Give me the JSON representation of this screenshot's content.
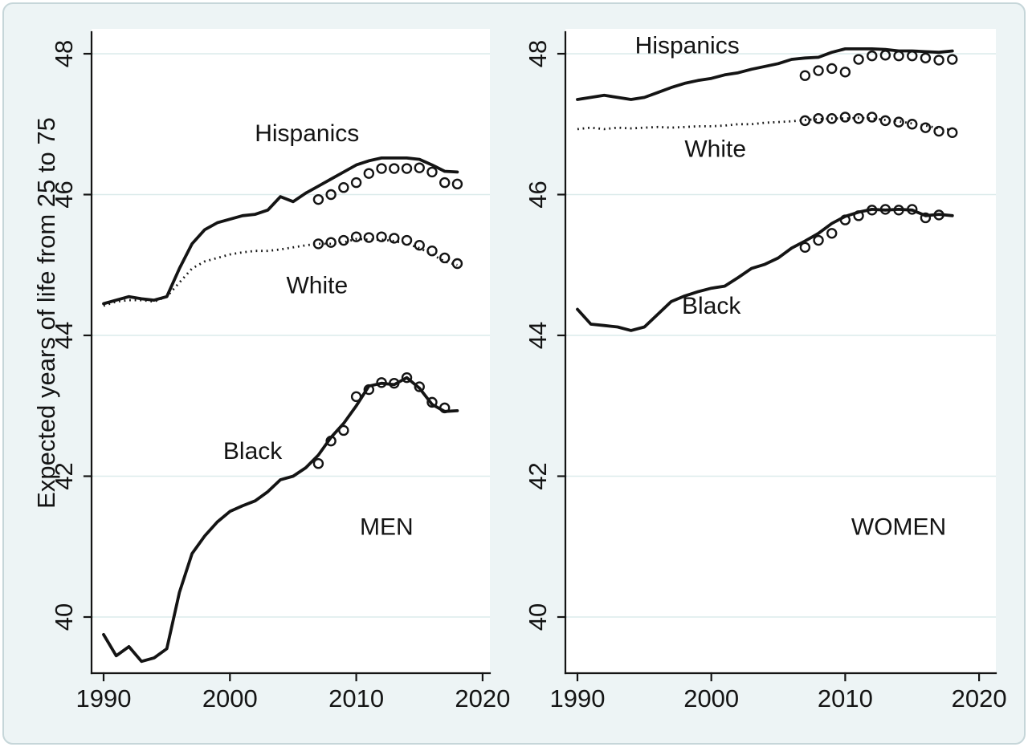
{
  "figure": {
    "description": "Two-panel line chart of expected years of life from 25 to 75 by race-ethnicity, men and women, 1990-2018"
  },
  "colors": {
    "ink": "#141414",
    "grid": "#dcebeb",
    "canvas_bg": "#edf4f5",
    "plot_bg": "#ffffff",
    "frame_border": "#c6d6d9"
  },
  "y_axis": {
    "title": "Expected years of life from 25 to 75",
    "ticks": [
      40,
      42,
      44,
      46,
      48
    ],
    "range": [
      39.2,
      48.31
    ]
  },
  "x_axis": {
    "ticks": [
      1990,
      2000,
      2010,
      2020
    ],
    "range": [
      1989,
      2021.3
    ]
  },
  "chart_data": [
    {
      "type": "line",
      "panel": "left",
      "title": "MEN",
      "title_pos": {
        "year": 2012.4,
        "value": 41.28
      },
      "series": [
        {
          "id": "hispanic-line",
          "group": "Hispanics",
          "style": "solid",
          "start_year": 1990,
          "values": [
            44.45,
            44.5,
            44.55,
            44.52,
            44.5,
            44.55,
            44.95,
            45.3,
            45.5,
            45.6,
            45.65,
            45.7,
            45.72,
            45.78,
            45.97,
            45.9,
            46.02,
            46.12,
            46.22,
            46.32,
            46.42,
            46.48,
            46.52,
            46.52,
            46.52,
            46.5,
            46.42,
            46.33,
            46.32
          ]
        },
        {
          "id": "white-line",
          "group": "White",
          "style": "dotted",
          "start_year": 1990,
          "values": [
            44.42,
            44.48,
            44.5,
            44.5,
            44.48,
            44.55,
            44.75,
            44.95,
            45.05,
            45.1,
            45.15,
            45.18,
            45.2,
            45.2,
            45.22,
            45.25,
            45.28,
            45.3,
            45.3,
            45.32,
            45.37,
            45.36,
            45.36,
            45.34,
            45.3,
            45.24,
            45.15,
            45.05,
            45.0
          ]
        },
        {
          "id": "black-line",
          "group": "Black",
          "style": "solid",
          "start_year": 1990,
          "values": [
            39.75,
            39.45,
            39.58,
            39.37,
            39.42,
            39.55,
            40.35,
            40.9,
            41.15,
            41.35,
            41.5,
            41.58,
            41.65,
            41.78,
            41.95,
            42.0,
            42.12,
            42.3,
            42.55,
            42.75,
            43.0,
            43.28,
            43.32,
            43.3,
            43.4,
            43.25,
            43.02,
            42.92,
            42.93
          ]
        },
        {
          "id": "hispanic-markers",
          "group": "Hispanics",
          "style": "hollow-circles",
          "start_year": 2007,
          "values": [
            45.93,
            46.0,
            46.1,
            46.17,
            46.3,
            46.37,
            46.37,
            46.37,
            46.38,
            46.32,
            46.17,
            46.15
          ]
        },
        {
          "id": "white-markers",
          "group": "White",
          "style": "hollow-circles",
          "start_year": 2007,
          "values": [
            45.3,
            45.32,
            45.35,
            45.4,
            45.39,
            45.4,
            45.38,
            45.35,
            45.28,
            45.2,
            45.1,
            45.02
          ]
        },
        {
          "id": "black-markers",
          "group": "Black",
          "style": "hollow-circles",
          "start_year": 2007,
          "values": [
            42.18,
            42.5,
            42.65,
            43.13,
            43.23,
            43.33,
            43.32,
            43.4,
            43.27,
            43.05,
            42.97
          ]
        }
      ],
      "labels": [
        {
          "text": "Hispanics",
          "year": 2006.1,
          "value": 46.87
        },
        {
          "text": "White",
          "year": 2006.9,
          "value": 44.71
        },
        {
          "text": "Black",
          "year": 2001.8,
          "value": 42.36
        }
      ]
    },
    {
      "type": "line",
      "panel": "right",
      "title": "WOMEN",
      "title_pos": {
        "year": 2014.0,
        "value": 41.28
      },
      "series": [
        {
          "id": "hispanic-line",
          "group": "Hispanics",
          "style": "solid",
          "start_year": 1990,
          "values": [
            47.35,
            47.38,
            47.41,
            47.38,
            47.35,
            47.38,
            47.45,
            47.52,
            47.58,
            47.62,
            47.65,
            47.7,
            47.73,
            47.78,
            47.82,
            47.86,
            47.92,
            47.94,
            47.95,
            48.02,
            48.07,
            48.07,
            48.07,
            48.06,
            48.04,
            48.04,
            48.03,
            48.02,
            48.04
          ]
        },
        {
          "id": "white-line",
          "group": "White",
          "style": "dotted",
          "start_year": 1990,
          "values": [
            46.93,
            46.95,
            46.93,
            46.95,
            46.94,
            46.95,
            46.96,
            46.95,
            46.96,
            46.97,
            46.97,
            46.98,
            47.0,
            47.0,
            47.02,
            47.03,
            47.04,
            47.06,
            47.07,
            47.08,
            47.08,
            47.09,
            47.08,
            47.06,
            47.04,
            47.01,
            46.98,
            46.94,
            46.92
          ]
        },
        {
          "id": "black-line",
          "group": "Black",
          "style": "solid",
          "start_year": 1990,
          "values": [
            44.37,
            44.16,
            44.14,
            44.12,
            44.07,
            44.12,
            44.3,
            44.48,
            44.56,
            44.62,
            44.67,
            44.7,
            44.82,
            44.95,
            45.01,
            45.1,
            45.24,
            45.34,
            45.45,
            45.59,
            45.69,
            45.75,
            45.79,
            45.78,
            45.79,
            45.78,
            45.7,
            45.72,
            45.7
          ]
        },
        {
          "id": "hispanic-markers",
          "group": "Hispanics",
          "style": "hollow-circles",
          "start_year": 2007,
          "values": [
            47.69,
            47.76,
            47.79,
            47.74,
            47.92,
            47.97,
            47.98,
            47.97,
            47.97,
            47.94,
            47.91,
            47.92
          ]
        },
        {
          "id": "white-markers",
          "group": "White",
          "style": "hollow-circles",
          "start_year": 2007,
          "values": [
            47.05,
            47.08,
            47.08,
            47.1,
            47.08,
            47.1,
            47.05,
            47.03,
            47.0,
            46.95,
            46.9,
            46.88
          ]
        },
        {
          "id": "black-markers",
          "group": "Black",
          "style": "hollow-circles",
          "start_year": 2007,
          "values": [
            45.25,
            45.35,
            45.45,
            45.64,
            45.7,
            45.78,
            45.79,
            45.78,
            45.79,
            45.67,
            45.71
          ]
        }
      ],
      "labels": [
        {
          "text": "Hispanics",
          "year": 1998.2,
          "value": 48.12
        },
        {
          "text": "White",
          "year": 2000.3,
          "value": 46.65
        },
        {
          "text": "Black",
          "year": 2000.0,
          "value": 44.42
        }
      ]
    }
  ]
}
